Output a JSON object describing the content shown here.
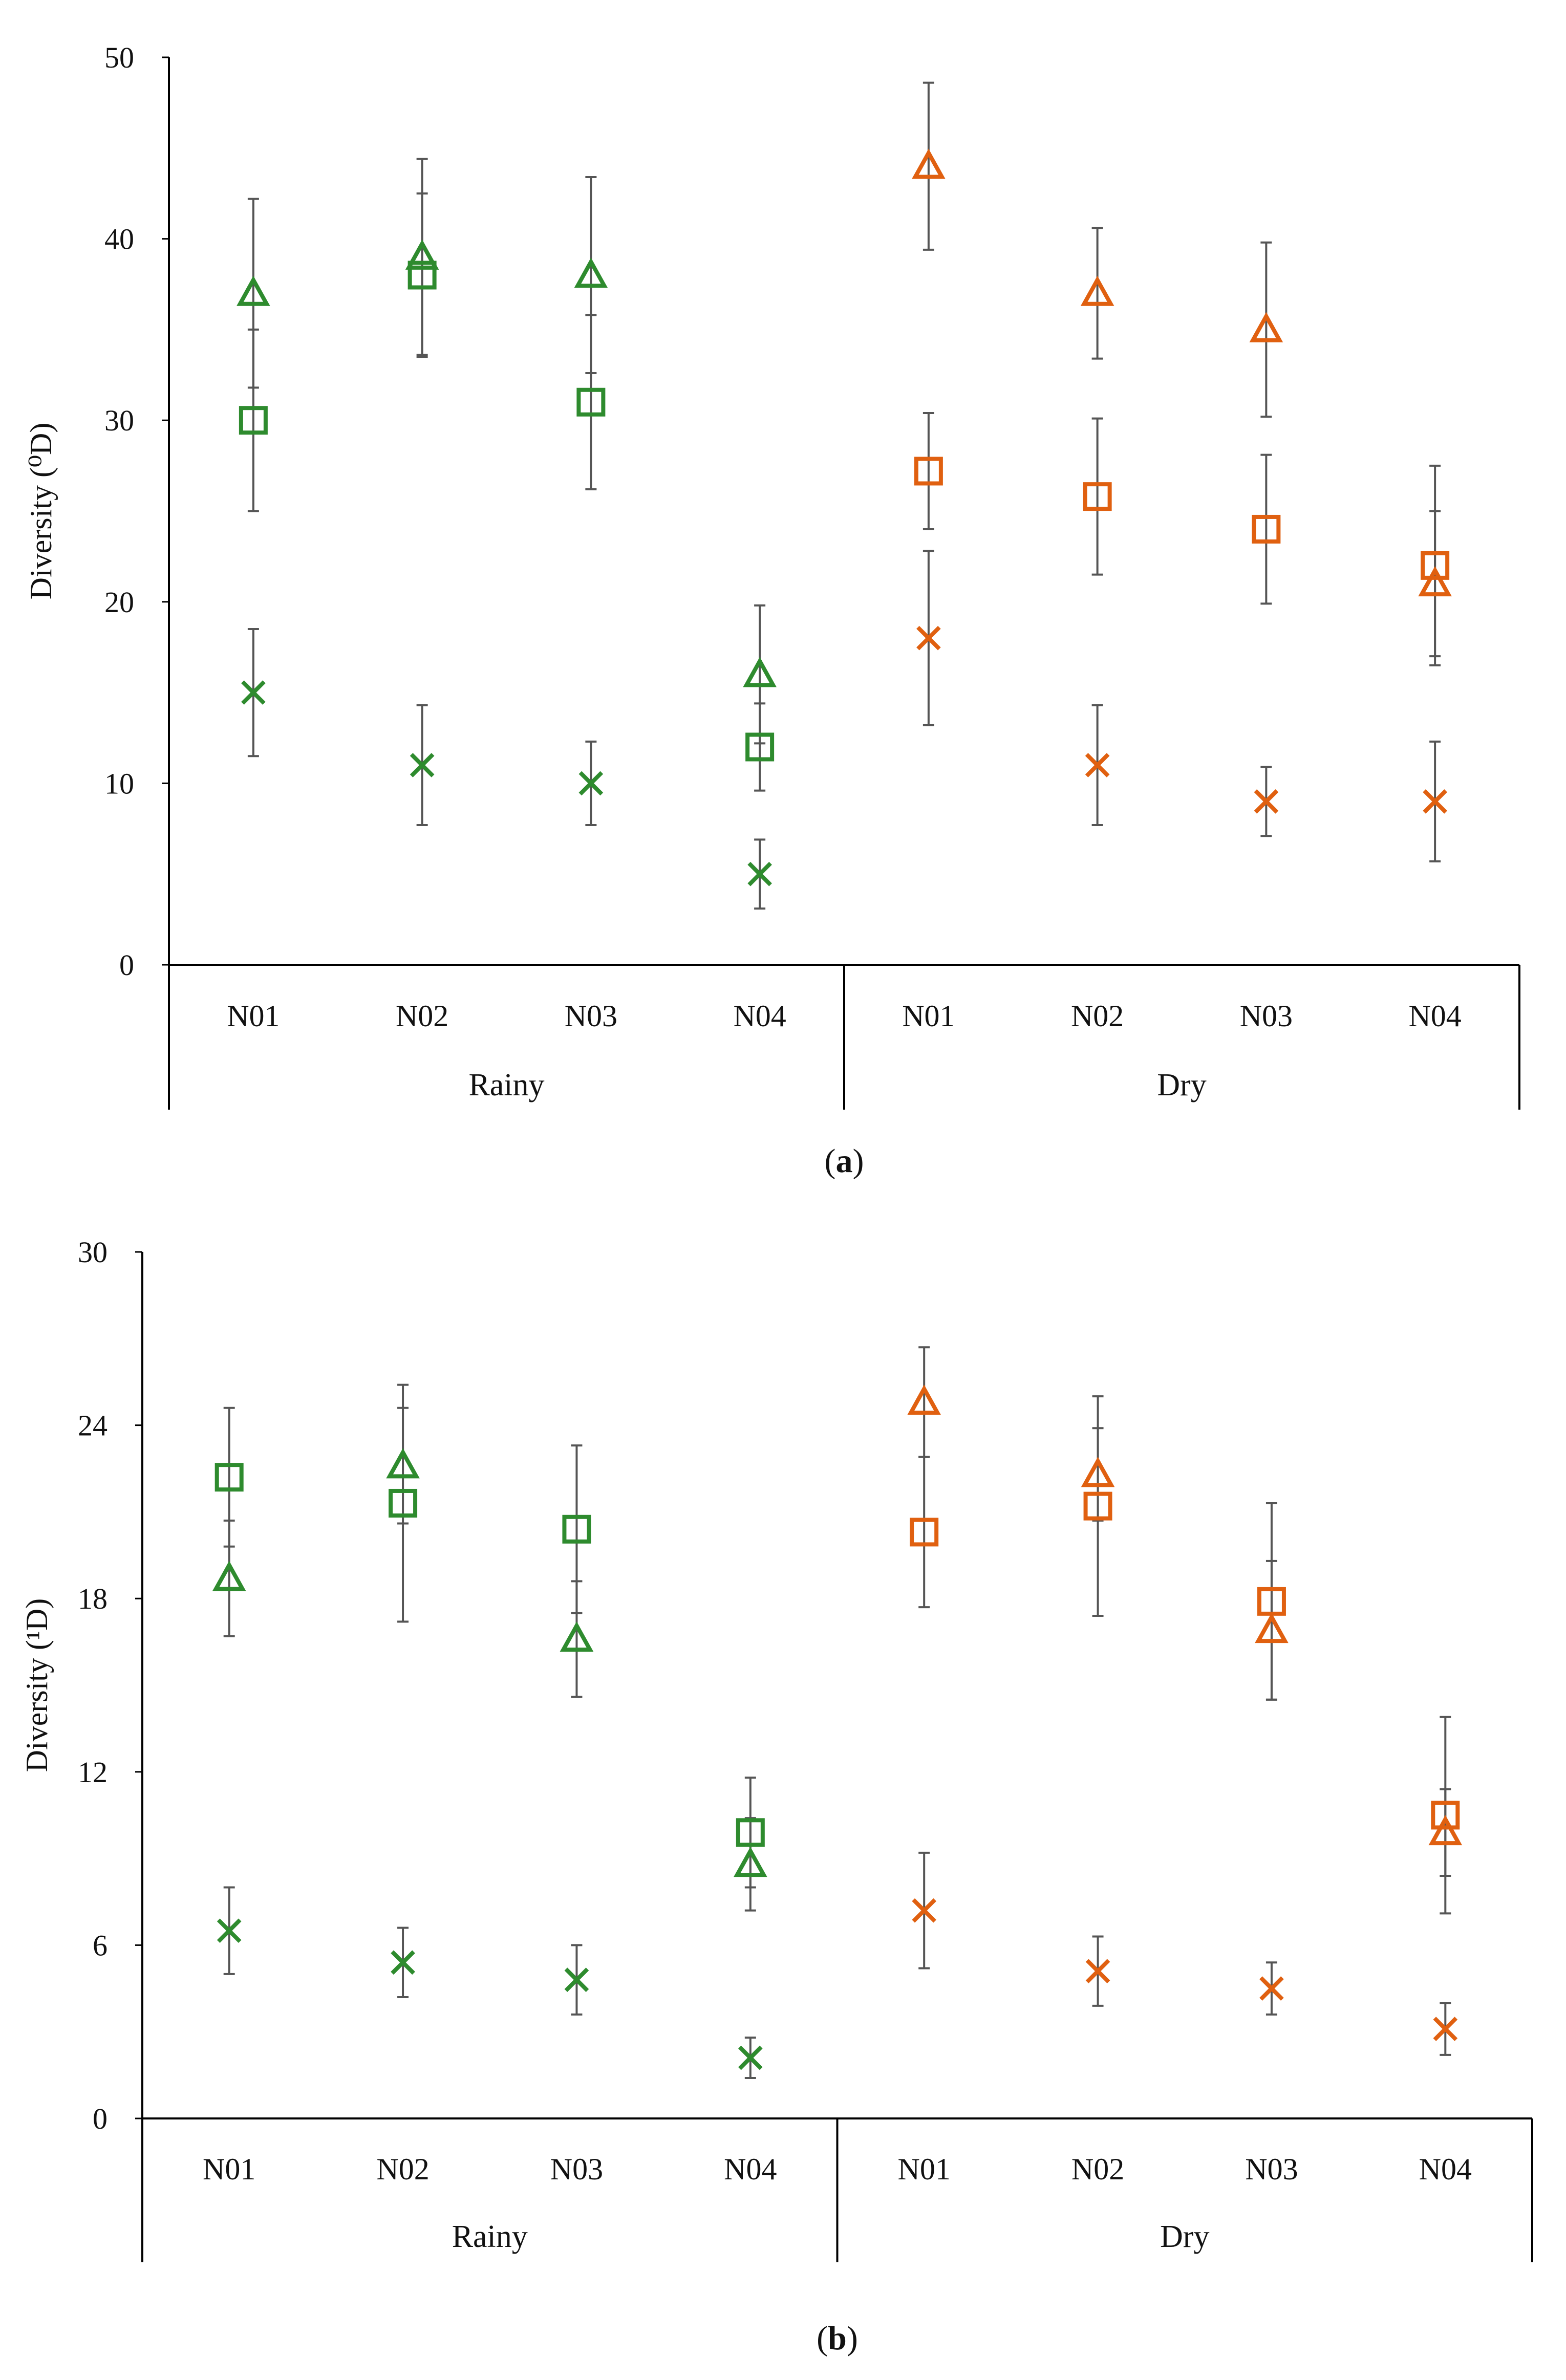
{
  "colors": {
    "rainy": "#2e8b2e",
    "dry": "#e06010",
    "axis": "#000000",
    "errorbar": "#555555"
  },
  "chart_data": [
    {
      "type": "scatter",
      "panel_label": "a",
      "ylabel": "Diversity (⁰D)",
      "ylim": [
        0,
        50
      ],
      "yticks": [
        "0",
        "10",
        "20",
        "30",
        "40",
        "50"
      ],
      "categories": [
        "N01",
        "N02",
        "N03",
        "N04",
        "N01",
        "N02",
        "N03",
        "N04"
      ],
      "groups": [
        "Rainy",
        "Dry"
      ],
      "grid": false,
      "legend": "none",
      "series": [
        {
          "marker": "triangle",
          "values": [
            37,
            39,
            38,
            16,
            44,
            37,
            35,
            21
          ],
          "error": [
            5.2,
            5.4,
            5.4,
            3.8,
            4.6,
            3.6,
            4.8,
            4.0
          ]
        },
        {
          "marker": "square",
          "values": [
            30,
            38,
            31,
            12,
            27.2,
            25.8,
            24,
            22
          ],
          "error": [
            5.0,
            4.5,
            4.8,
            2.4,
            3.2,
            4.3,
            4.1,
            5.5
          ]
        },
        {
          "marker": "x",
          "values": [
            15,
            11,
            10,
            5,
            18,
            11,
            9,
            9
          ],
          "error": [
            3.5,
            3.3,
            2.3,
            1.9,
            4.8,
            3.3,
            1.9,
            3.3
          ]
        }
      ]
    },
    {
      "type": "scatter",
      "panel_label": "b",
      "ylabel": "Diversity (¹D)",
      "ylim": [
        0,
        30
      ],
      "yticks": [
        "0",
        "6",
        "12",
        "18",
        "24",
        "30"
      ],
      "categories": [
        "N01",
        "N02",
        "N03",
        "N04",
        "N01",
        "N02",
        "N03",
        "N04"
      ],
      "groups": [
        "Rainy",
        "Dry"
      ],
      "grid": false,
      "legend": "none",
      "series": [
        {
          "marker": "triangle",
          "values": [
            18.7,
            22.6,
            16.6,
            8.8,
            24.8,
            22.3,
            16.9,
            9.9
          ],
          "error": [
            2.0,
            2.0,
            2.0,
            1.6,
            1.9,
            1.6,
            2.4,
            1.5
          ]
        },
        {
          "marker": "square",
          "values": [
            22.2,
            21.3,
            20.4,
            9.9,
            20.3,
            21.2,
            17.9,
            10.5
          ],
          "error": [
            2.4,
            4.1,
            2.9,
            1.9,
            2.6,
            3.8,
            3.4,
            3.4
          ]
        },
        {
          "marker": "x",
          "values": [
            6.5,
            5.4,
            4.8,
            2.1,
            7.2,
            5.1,
            4.5,
            3.1
          ],
          "error": [
            1.5,
            1.2,
            1.2,
            0.7,
            2.0,
            1.2,
            0.9,
            0.9
          ]
        }
      ]
    }
  ]
}
